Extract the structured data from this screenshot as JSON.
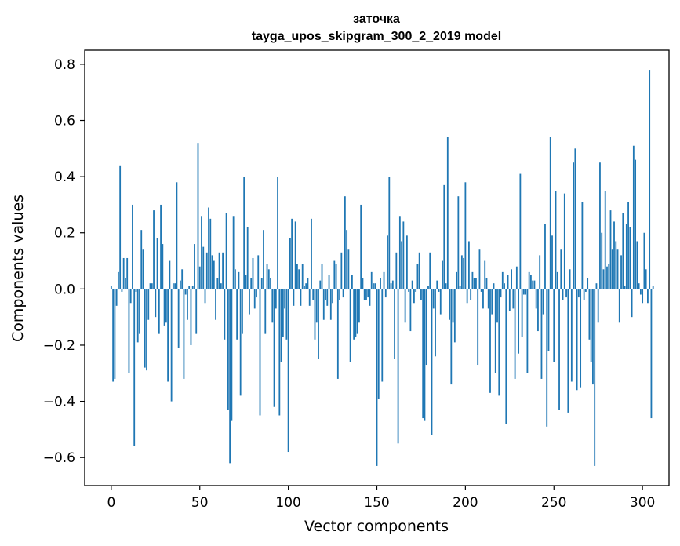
{
  "chart_data": {
    "type": "bar",
    "title": "заточка",
    "subtitle": "tayga_upos_skipgram_300_2_2019 model",
    "xlabel": "Vector components",
    "ylabel": "Components values",
    "xlim": [
      -15,
      315
    ],
    "ylim": [
      -0.7,
      0.85
    ],
    "xticks": [
      0,
      50,
      100,
      150,
      200,
      250,
      300
    ],
    "yticks": [
      -0.6,
      -0.4,
      -0.2,
      0.0,
      0.2,
      0.4,
      0.6,
      0.8
    ],
    "xtick_labels": [
      "0",
      "50",
      "100",
      "150",
      "200",
      "250",
      "300"
    ],
    "ytick_labels": [
      "−0.6",
      "−0.4",
      "−0.2",
      "0.0",
      "0.2",
      "0.4",
      "0.6",
      "0.8"
    ],
    "bar_color": "#1f77b4",
    "values": [
      0.01,
      -0.33,
      -0.32,
      -0.06,
      0.06,
      0.44,
      -0.01,
      0.11,
      0.04,
      0.11,
      -0.3,
      -0.05,
      0.3,
      -0.56,
      -0.01,
      -0.19,
      -0.16,
      0.21,
      0.14,
      -0.28,
      -0.29,
      -0.11,
      0.02,
      0.02,
      0.28,
      -0.1,
      0.18,
      -0.16,
      0.3,
      0.16,
      -0.13,
      -0.12,
      -0.33,
      0.1,
      -0.4,
      0.02,
      0.02,
      0.38,
      -0.21,
      0.03,
      0.07,
      -0.32,
      -0.02,
      -0.11,
      0.01,
      -0.2,
      0.01,
      0.16,
      -0.16,
      0.52,
      0.08,
      0.26,
      0.15,
      -0.05,
      0.13,
      0.29,
      0.25,
      0.12,
      0.1,
      -0.11,
      0.04,
      0.13,
      0.02,
      0.13,
      -0.18,
      0.27,
      -0.43,
      -0.62,
      -0.47,
      0.26,
      0.07,
      -0.18,
      0.06,
      -0.38,
      -0.16,
      0.4,
      0.05,
      0.22,
      -0.09,
      0.04,
      0.11,
      -0.07,
      -0.03,
      0.12,
      -0.45,
      0.04,
      0.21,
      -0.16,
      0.09,
      0.07,
      0.04,
      -0.12,
      -0.42,
      -0.07,
      0.4,
      -0.45,
      -0.26,
      -0.17,
      -0.07,
      -0.18,
      -0.58,
      0.18,
      0.25,
      -0.06,
      0.24,
      0.09,
      0.07,
      -0.06,
      0.09,
      0.01,
      0.02,
      0.04,
      -0.06,
      0.25,
      -0.04,
      -0.18,
      -0.12,
      -0.25,
      0.03,
      0.09,
      -0.11,
      -0.04,
      -0.06,
      0.05,
      -0.11,
      -0.05,
      0.1,
      0.09,
      -0.32,
      -0.04,
      0.13,
      -0.03,
      0.33,
      0.21,
      0.14,
      -0.26,
      0.05,
      -0.18,
      -0.17,
      -0.16,
      -0.12,
      0.3,
      0.04,
      -0.04,
      -0.04,
      -0.03,
      -0.06,
      0.06,
      0.02,
      0.02,
      -0.63,
      -0.39,
      0.04,
      -0.33,
      0.06,
      -0.03,
      0.19,
      0.4,
      0.02,
      0.03,
      -0.25,
      0.13,
      -0.55,
      0.26,
      0.17,
      0.24,
      -0.12,
      0.19,
      -0.01,
      -0.15,
      0.03,
      -0.05,
      -0.01,
      0.09,
      0.13,
      -0.04,
      -0.46,
      -0.47,
      -0.27,
      0.01,
      0.13,
      -0.52,
      -0.07,
      -0.24,
      0.03,
      -0.01,
      -0.09,
      0.1,
      0.37,
      0.02,
      0.54,
      -0.11,
      -0.34,
      -0.12,
      -0.19,
      0.06,
      0.33,
      0.01,
      0.12,
      0.11,
      0.38,
      -0.05,
      0.17,
      -0.04,
      0.06,
      0.04,
      0.04,
      -0.27,
      0.14,
      -0.01,
      -0.07,
      0.1,
      0.04,
      -0.07,
      -0.37,
      -0.09,
      0.02,
      -0.3,
      -0.12,
      -0.38,
      -0.03,
      0.06,
      0.02,
      -0.48,
      0.05,
      -0.08,
      0.07,
      -0.07,
      -0.32,
      0.08,
      -0.23,
      0.41,
      -0.17,
      -0.02,
      -0.02,
      -0.3,
      0.06,
      0.05,
      0.03,
      0.03,
      -0.07,
      -0.15,
      0.12,
      -0.32,
      -0.09,
      0.23,
      -0.49,
      -0.22,
      0.54,
      0.19,
      -0.26,
      0.35,
      0.06,
      -0.43,
      0.14,
      -0.04,
      0.34,
      -0.03,
      -0.44,
      0.07,
      -0.33,
      0.45,
      0.5,
      -0.36,
      -0.03,
      -0.35,
      0.31,
      -0.04,
      -0.01,
      0.04,
      -0.18,
      -0.26,
      -0.34,
      -0.63,
      0.02,
      -0.12,
      0.45,
      0.2,
      0.07,
      0.35,
      0.08,
      0.09,
      0.28,
      0.14,
      0.24,
      0.17,
      0.14,
      -0.12,
      0.12,
      0.27,
      0.01,
      0.23,
      0.31,
      0.22,
      -0.1,
      0.51,
      0.46,
      0.17,
      0.02,
      -0.02,
      -0.05,
      0.2,
      0.07,
      -0.05,
      0.78,
      -0.46,
      0.01
    ]
  }
}
